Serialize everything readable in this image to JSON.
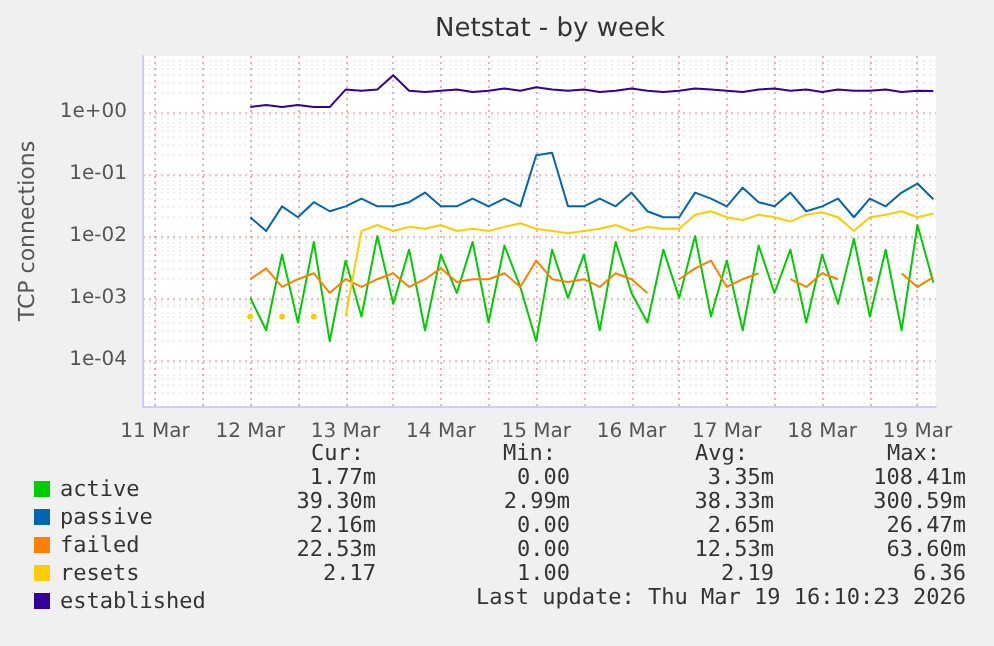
{
  "chart_data": {
    "type": "line",
    "title": "Netstat - by week",
    "ylabel": "TCP connections",
    "log": "y",
    "grid": true,
    "legend": "bottom left",
    "marker": "none",
    "line_style": "solid",
    "xlim": [
      "2026-03-11T09:00",
      "2026-03-19T16:40"
    ],
    "xticks": [
      {
        "value": "2026-03-11T12:00",
        "label": "11 Mar"
      },
      {
        "value": "2026-03-12T00:00",
        "label": null
      },
      {
        "value": "2026-03-12T12:00",
        "label": "12 Mar"
      },
      {
        "value": "2026-03-13T00:00",
        "label": null
      },
      {
        "value": "2026-03-13T12:00",
        "label": "13 Mar"
      },
      {
        "value": "2026-03-14T00:00",
        "label": null
      },
      {
        "value": "2026-03-14T12:00",
        "label": "14 Mar"
      },
      {
        "value": "2026-03-15T00:00",
        "label": null
      },
      {
        "value": "2026-03-15T12:00",
        "label": "15 Mar"
      },
      {
        "value": "2026-03-16T00:00",
        "label": null
      },
      {
        "value": "2026-03-16T12:00",
        "label": "16 Mar"
      },
      {
        "value": "2026-03-17T00:00",
        "label": null
      },
      {
        "value": "2026-03-17T12:00",
        "label": "17 Mar"
      },
      {
        "value": "2026-03-18T00:00",
        "label": null
      },
      {
        "value": "2026-03-18T12:00",
        "label": "18 Mar"
      },
      {
        "value": "2026-03-19T00:00",
        "label": null
      },
      {
        "value": "2026-03-19T12:00",
        "label": "19 Mar"
      }
    ],
    "ylim": [
      1.8e-05,
      8
    ],
    "yticks": [
      {
        "value": 0.0001,
        "label": "1e-04"
      },
      {
        "value": 0.001,
        "label": "1e-03"
      },
      {
        "value": 0.01,
        "label": "1e-02"
      },
      {
        "value": 0.1,
        "label": "1e-01"
      },
      {
        "value": 1,
        "label": "1e+00"
      }
    ],
    "x": [
      "2026-03-12T12:00",
      "2026-03-12T16:00",
      "2026-03-12T20:00",
      "2026-03-13T00:00",
      "2026-03-13T04:00",
      "2026-03-13T08:00",
      "2026-03-13T12:00",
      "2026-03-13T16:00",
      "2026-03-13T20:00",
      "2026-03-14T00:00",
      "2026-03-14T04:00",
      "2026-03-14T08:00",
      "2026-03-14T12:00",
      "2026-03-14T16:00",
      "2026-03-14T20:00",
      "2026-03-15T00:00",
      "2026-03-15T04:00",
      "2026-03-15T08:00",
      "2026-03-15T12:00",
      "2026-03-15T16:00",
      "2026-03-15T20:00",
      "2026-03-16T00:00",
      "2026-03-16T04:00",
      "2026-03-16T08:00",
      "2026-03-16T12:00",
      "2026-03-16T16:00",
      "2026-03-16T20:00",
      "2026-03-17T00:00",
      "2026-03-17T04:00",
      "2026-03-17T08:00",
      "2026-03-17T12:00",
      "2026-03-17T16:00",
      "2026-03-17T20:00",
      "2026-03-18T00:00",
      "2026-03-18T04:00",
      "2026-03-18T08:00",
      "2026-03-18T12:00",
      "2026-03-18T16:00",
      "2026-03-18T20:00",
      "2026-03-19T00:00",
      "2026-03-19T04:00",
      "2026-03-19T08:00",
      "2026-03-19T12:00",
      "2026-03-19T16:00"
    ],
    "series": [
      {
        "name": "active",
        "color": "#00cc00",
        "values": [
          0.001,
          0.0003,
          0.005,
          0.0004,
          0.008,
          0.0002,
          0.004,
          0.0005,
          0.01,
          0.0008,
          0.006,
          0.0003,
          0.005,
          0.0012,
          0.008,
          0.0004,
          0.007,
          0.0015,
          0.0002,
          0.006,
          0.001,
          0.005,
          0.0003,
          0.008,
          0.0012,
          0.0004,
          0.006,
          0.001,
          0.01,
          0.0005,
          0.004,
          0.0003,
          0.007,
          0.0012,
          0.006,
          0.0004,
          0.005,
          0.0008,
          0.009,
          0.0005,
          0.006,
          0.0003,
          0.015,
          0.00177
        ]
      },
      {
        "name": "passive",
        "color": "#0066b3",
        "values": [
          0.02,
          0.012,
          0.03,
          0.02,
          0.035,
          0.025,
          0.03,
          0.04,
          0.03,
          0.03,
          0.035,
          0.05,
          0.03,
          0.03,
          0.04,
          0.03,
          0.04,
          0.03,
          0.2,
          0.22,
          0.03,
          0.03,
          0.04,
          0.03,
          0.05,
          0.025,
          0.02,
          0.02,
          0.05,
          0.04,
          0.03,
          0.06,
          0.035,
          0.03,
          0.05,
          0.025,
          0.03,
          0.04,
          0.02,
          0.04,
          0.03,
          0.05,
          0.07,
          0.039
        ]
      },
      {
        "name": "failed",
        "color": "#ff8000",
        "values": [
          0.002,
          0.003,
          0.0015,
          0.002,
          0.0025,
          0.0012,
          0.002,
          0.0015,
          0.002,
          0.0025,
          0.0015,
          0.002,
          0.003,
          0.0018,
          0.002,
          0.002,
          0.0025,
          0.0015,
          0.004,
          0.002,
          0.0018,
          0.002,
          0.0015,
          0.0025,
          0.002,
          0.0012,
          null,
          0.002,
          0.003,
          0.004,
          0.0015,
          0.002,
          0.0025,
          null,
          0.002,
          0.0015,
          0.0025,
          0.002,
          null,
          0.002,
          null,
          0.0025,
          0.0015,
          0.00216
        ]
      },
      {
        "name": "resets",
        "color": "#ffcc00",
        "values": [
          0.0005,
          null,
          0.0005,
          null,
          0.0005,
          null,
          0.0005,
          0.012,
          0.015,
          0.012,
          0.014,
          0.013,
          0.015,
          0.012,
          0.013,
          0.012,
          0.014,
          0.016,
          0.013,
          0.012,
          0.011,
          0.012,
          0.013,
          0.015,
          0.012,
          0.014,
          0.013,
          0.013,
          0.022,
          0.025,
          0.02,
          0.018,
          0.022,
          0.02,
          0.017,
          0.022,
          0.024,
          0.02,
          0.012,
          0.02,
          0.022,
          0.025,
          0.02,
          0.023
        ]
      },
      {
        "name": "established",
        "color": "#330099",
        "values": [
          1.2,
          1.3,
          1.2,
          1.3,
          1.2,
          1.2,
          2.3,
          2.2,
          2.3,
          3.9,
          2.2,
          2.1,
          2.2,
          2.3,
          2.1,
          2.2,
          2.4,
          2.2,
          2.5,
          2.3,
          2.2,
          2.3,
          2.1,
          2.2,
          2.4,
          2.2,
          2.1,
          2.2,
          2.4,
          2.3,
          2.2,
          2.1,
          2.3,
          2.4,
          2.2,
          2.3,
          2.1,
          2.3,
          2.2,
          2.2,
          2.3,
          2.1,
          2.2,
          2.17
        ]
      }
    ],
    "annotations": [
      "Cur:",
      "Min:",
      "Avg:",
      "Max:",
      "1.77m",
      "0.00",
      "3.35m",
      "108.41m",
      "39.30m",
      "2.99m",
      "38.33m",
      "300.59m",
      "2.16m",
      "0.00",
      "2.65m",
      "26.47m",
      "22.53m",
      "0.00",
      "12.53m",
      "63.60m",
      "2.17",
      "1.00",
      "2.19",
      "6.36",
      "Last update: Thu Mar 19 16:10:23 2026"
    ]
  }
}
